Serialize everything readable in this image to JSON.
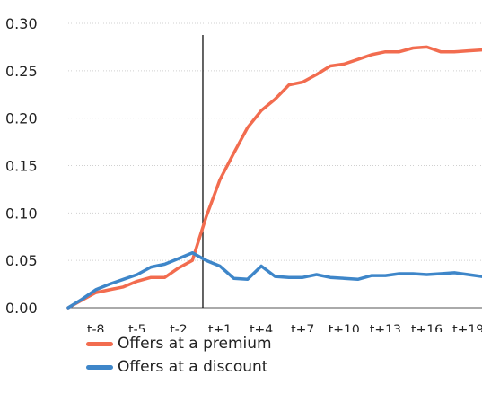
{
  "chart_data": {
    "type": "line",
    "x": [
      "t-10",
      "t-9",
      "t-8",
      "t-7",
      "t-6",
      "t-5",
      "t-4",
      "t-3",
      "t-2",
      "t-1",
      "t",
      "t+1",
      "t+2",
      "t+3",
      "t+4",
      "t+5",
      "t+6",
      "t+7",
      "t+8",
      "t+9",
      "t+10",
      "t+11",
      "t+12",
      "t+13",
      "t+14",
      "t+15",
      "t+16",
      "t+17",
      "t+18",
      "t+19",
      "t+20"
    ],
    "x_tick_labels": [
      "t-8",
      "t-5",
      "t-2",
      "t+1",
      "t+4",
      "t+7",
      "t+10",
      "t+13",
      "t+16",
      "t+19"
    ],
    "ylim": [
      0,
      0.3
    ],
    "y_tick_labels": [
      "0.00",
      "0.05",
      "0.10",
      "0.15",
      "0.20",
      "0.25",
      "0.30"
    ],
    "event_marker_x": "t",
    "series": [
      {
        "name": "Offers at a premium",
        "color": "#f26c4f",
        "values": [
          0.0,
          0.008,
          0.016,
          0.019,
          0.022,
          0.028,
          0.032,
          0.032,
          0.042,
          0.05,
          0.096,
          0.135,
          0.163,
          0.19,
          0.208,
          0.22,
          0.235,
          0.238,
          0.246,
          0.255,
          0.257,
          0.262,
          0.267,
          0.27,
          0.27,
          0.274,
          0.275,
          0.27,
          0.27,
          0.271,
          0.272
        ]
      },
      {
        "name": "Offers at a discount",
        "color": "#3e86c9",
        "values": [
          0.0,
          0.009,
          0.019,
          0.025,
          0.03,
          0.035,
          0.043,
          0.046,
          0.052,
          0.058,
          0.05,
          0.044,
          0.031,
          0.03,
          0.044,
          0.033,
          0.032,
          0.032,
          0.035,
          0.032,
          0.031,
          0.03,
          0.034,
          0.034,
          0.036,
          0.036,
          0.035,
          0.036,
          0.037,
          0.035,
          0.033
        ]
      }
    ]
  }
}
